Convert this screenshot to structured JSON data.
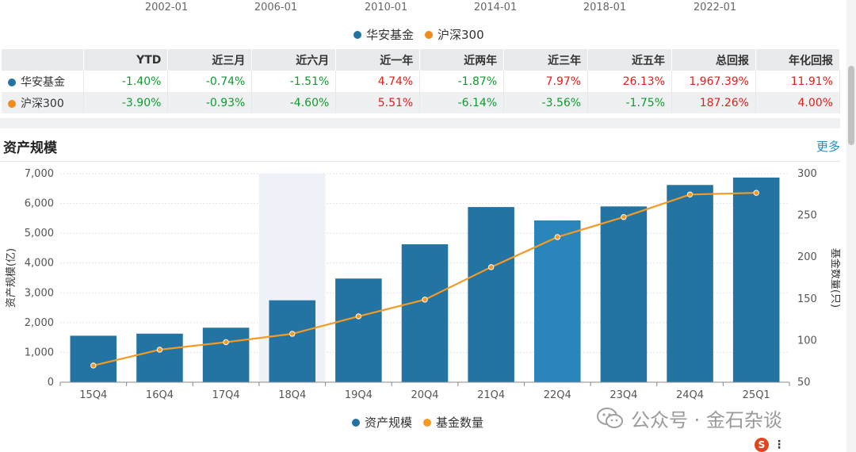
{
  "top_axis": {
    "ticks": [
      "2002-01",
      "2006-01",
      "2010-01",
      "2014-01",
      "2018-01",
      "2022-01"
    ]
  },
  "performance_legend": [
    {
      "name": "华安基金",
      "color": "#2474a3"
    },
    {
      "name": "沪深300",
      "color": "#f08c1e"
    }
  ],
  "performance_table": {
    "headers": [
      "",
      "YTD",
      "近三月",
      "近六月",
      "近一年",
      "近两年",
      "近三年",
      "近五年",
      "总回报",
      "年化回报"
    ],
    "rows": [
      {
        "name": "华安基金",
        "color": "#2474a3",
        "values": [
          "-1.40%",
          "-0.74%",
          "-1.51%",
          "4.74%",
          "-1.87%",
          "7.97%",
          "26.13%",
          "1,967.39%",
          "11.91%"
        ]
      },
      {
        "name": "沪深300",
        "color": "#f08c1e",
        "values": [
          "-3.90%",
          "-0.93%",
          "-4.60%",
          "5.51%",
          "-6.14%",
          "-3.56%",
          "-1.75%",
          "187.26%",
          "4.00%"
        ]
      }
    ]
  },
  "section": {
    "title": "资产规模",
    "more_label": "更多"
  },
  "chart_data": {
    "type": "bar",
    "categories": [
      "15Q4",
      "16Q4",
      "17Q4",
      "18Q4",
      "19Q4",
      "20Q4",
      "21Q4",
      "22Q4",
      "23Q4",
      "24Q4",
      "25Q1"
    ],
    "series": [
      {
        "name": "资产规模",
        "type": "bar",
        "axis": "left",
        "color": "#2474a3",
        "values": [
          1560,
          1630,
          1830,
          2750,
          3480,
          4630,
          5880,
          5430,
          5900,
          6620,
          6870
        ]
      },
      {
        "name": "基金数量",
        "type": "line",
        "axis": "right",
        "color": "#f59a23",
        "values": [
          70,
          89,
          98,
          108,
          129,
          149,
          188,
          224,
          248,
          275,
          277
        ]
      }
    ],
    "highlighted_category": "22Q4",
    "hover_band_category": "18Q4",
    "ylabel": "资产规模(亿)",
    "ylabel_right": "基金数量(只)",
    "ylim": [
      0,
      7000
    ],
    "ylim_right": [
      50,
      300
    ],
    "yticks": [
      "0",
      "1,000",
      "2,000",
      "3,000",
      "4,000",
      "5,000",
      "6,000",
      "7,000"
    ],
    "yticks_right": [
      "50",
      "100",
      "150",
      "200",
      "250",
      "300"
    ],
    "grid": true,
    "legend": "bottom-center"
  },
  "watermark": {
    "text": "公众号 · 金石杂谈"
  },
  "corner_widget": {
    "s_label": "S",
    "menu_glyph": "⋮"
  }
}
